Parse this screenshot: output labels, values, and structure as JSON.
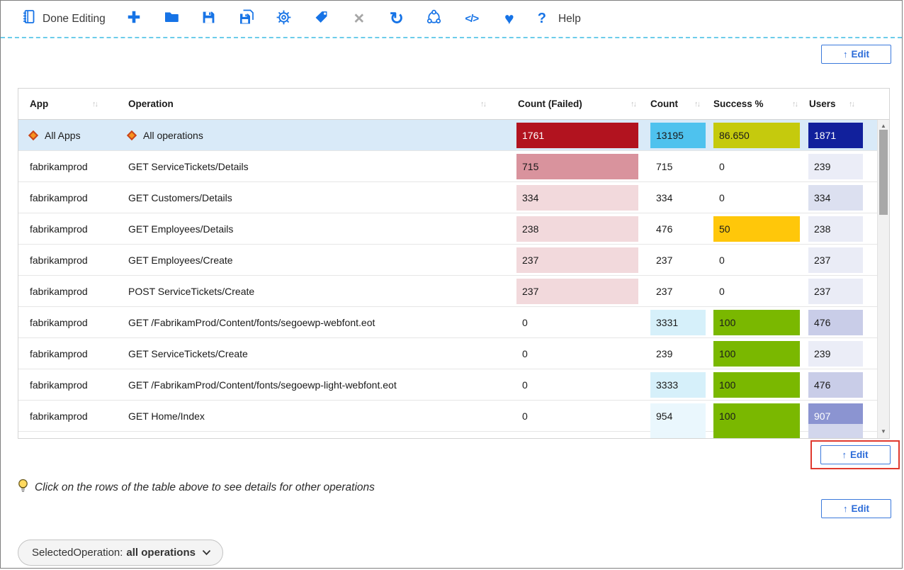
{
  "theme": {
    "accent": "#1673e6",
    "edit-blue": "#2b6bd8",
    "selected-row": "#d9eaf8",
    "annotation": "#e0392e",
    "dashed": "#6cccea",
    "diamond": "#f8931d"
  },
  "toolbar": {
    "done_editing_label": "Done Editing",
    "help_label": "Help",
    "glyphs": {
      "close": "×",
      "refresh": "↻",
      "code": "</>",
      "heart": "♥",
      "help": "?"
    },
    "icons": [
      "notebook-icon",
      "plus-icon",
      "folder-icon",
      "save-icon",
      "save-as-icon",
      "settings-gear-icon",
      "tag-icon",
      "close-icon",
      "refresh-icon",
      "share-nodes-icon",
      "code-icon",
      "heart-icon",
      "help-icon"
    ]
  },
  "edit_button": {
    "arrow": "↑",
    "label": "Edit"
  },
  "table": {
    "sort_glyph": "↑↓",
    "scrollbar": {
      "up": "▲",
      "down": "▼"
    },
    "columns": [
      {
        "label": "App"
      },
      {
        "label": "Operation"
      },
      {
        "label": "Count (Failed)"
      },
      {
        "label": "Count"
      },
      {
        "label": "Success %"
      },
      {
        "label": "Users"
      }
    ],
    "rows": [
      {
        "selected": true,
        "app_diamond": true,
        "op_diamond": true,
        "app": "All Apps",
        "operation": "All operations",
        "failed": {
          "v": "1761",
          "bg": "#b2131f",
          "fg": "#ffffff"
        },
        "count": {
          "v": "13195",
          "bg": "#4ec2ee"
        },
        "success": {
          "v": "86.650",
          "bg": "#c5ca0d"
        },
        "users": {
          "v": "1871",
          "bg": "#11209c",
          "fg": "#ffffff"
        }
      },
      {
        "app": "fabrikamprod",
        "operation": "GET ServiceTickets/Details",
        "failed": {
          "v": "715",
          "bg": "#d9939d"
        },
        "count": {
          "v": "715"
        },
        "success": {
          "v": "0"
        },
        "users": {
          "v": "239",
          "bg": "#ebedf7"
        }
      },
      {
        "app": "fabrikamprod",
        "operation": "GET Customers/Details",
        "failed": {
          "v": "334",
          "bg": "#f2d9dc"
        },
        "count": {
          "v": "334"
        },
        "success": {
          "v": "0"
        },
        "users": {
          "v": "334",
          "bg": "#dce0f0"
        }
      },
      {
        "app": "fabrikamprod",
        "operation": "GET Employees/Details",
        "failed": {
          "v": "238",
          "bg": "#f2d9dc"
        },
        "count": {
          "v": "476"
        },
        "success": {
          "v": "50",
          "bg": "#ffc70a"
        },
        "users": {
          "v": "238",
          "bg": "#eaecf6"
        }
      },
      {
        "app": "fabrikamprod",
        "operation": "GET Employees/Create",
        "failed": {
          "v": "237",
          "bg": "#f2d9dc"
        },
        "count": {
          "v": "237"
        },
        "success": {
          "v": "0"
        },
        "users": {
          "v": "237",
          "bg": "#eaecf6"
        }
      },
      {
        "app": "fabrikamprod",
        "operation": "POST ServiceTickets/Create",
        "failed": {
          "v": "237",
          "bg": "#f2d9dc"
        },
        "count": {
          "v": "237"
        },
        "success": {
          "v": "0"
        },
        "users": {
          "v": "237",
          "bg": "#eaecf6"
        }
      },
      {
        "app": "fabrikamprod",
        "operation": "GET /FabrikamProd/Content/fonts/segoewp-webfont.eot",
        "failed": {
          "v": "0"
        },
        "count": {
          "v": "3331",
          "bg": "#d6f0fa"
        },
        "success": {
          "v": "100",
          "bg": "#7ab800"
        },
        "users": {
          "v": "476",
          "bg": "#c9cde8"
        }
      },
      {
        "app": "fabrikamprod",
        "operation": "GET ServiceTickets/Create",
        "failed": {
          "v": "0"
        },
        "count": {
          "v": "239"
        },
        "success": {
          "v": "100",
          "bg": "#7ab800"
        },
        "users": {
          "v": "239",
          "bg": "#ebedf7"
        }
      },
      {
        "app": "fabrikamprod",
        "operation": "GET /FabrikamProd/Content/fonts/segoewp-light-webfont.eot",
        "failed": {
          "v": "0"
        },
        "count": {
          "v": "3333",
          "bg": "#d6f0fa"
        },
        "success": {
          "v": "100",
          "bg": "#7ab800"
        },
        "users": {
          "v": "476",
          "bg": "#c9cde8"
        }
      },
      {
        "app": "fabrikamprod",
        "operation": "GET Home/Index",
        "failed": {
          "v": "0"
        },
        "count": {
          "v": "954",
          "bg": "#eaf7fd"
        },
        "success": {
          "v": "100",
          "bg": "#7ab800"
        },
        "users": {
          "v": "907",
          "bg": "#8b94d1",
          "fg": "#ffffff"
        }
      },
      {
        "partial": true,
        "count": {
          "v": "",
          "bg": "#eaf7fd"
        },
        "success": {
          "v": "",
          "bg": "#7ab800"
        },
        "users": {
          "v": "",
          "bg": "#d2d6ec"
        }
      }
    ]
  },
  "tip": {
    "text": "Click on the rows of the table above to see details for other operations"
  },
  "parameter_pill": {
    "prefix": "SelectedOperation:",
    "value": "all operations"
  }
}
